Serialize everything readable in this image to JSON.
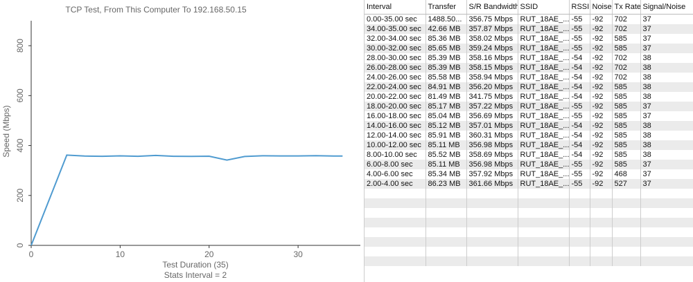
{
  "chart_data": {
    "type": "line",
    "title": "TCP Test,  From This Computer To 192.168.50.15",
    "x_label": "Test Duration (35)",
    "x_sublabel": "Stats Interval = 2",
    "y_label": "Speed (Mbps)",
    "x": [
      0,
      4,
      6,
      8,
      10,
      12,
      14,
      16,
      18,
      20,
      22,
      24,
      26,
      28,
      30,
      32,
      34,
      35
    ],
    "series": [
      {
        "color": "#4f9bd0",
        "values": [
          0,
          361.66,
          357.92,
          356.98,
          358.69,
          356.98,
          360.31,
          357.01,
          356.69,
          357.22,
          341.75,
          356.2,
          358.94,
          358.15,
          358.16,
          359.24,
          358.02,
          357.87
        ]
      }
    ],
    "xlim": [
      0,
      37
    ],
    "xticks": [
      0,
      10,
      20,
      30
    ],
    "ylim": [
      0,
      900
    ],
    "yticks": [
      0,
      200,
      400,
      600,
      800
    ]
  },
  "table": {
    "columns": [
      "Interval",
      "Transfer",
      "S/R Bandwidth",
      "SSID",
      "RSSI",
      "Noise",
      "Tx Rate",
      "Signal/Noise"
    ],
    "rows": [
      [
        "0.00-35.00 sec",
        "1488.50...",
        "356.75 Mbps",
        "RUT_18AE_...",
        "-55",
        "-92",
        "702",
        "37"
      ],
      [
        "34.00-35.00 sec",
        "42.66 MB",
        "357.87 Mbps",
        "RUT_18AE_...",
        "-55",
        "-92",
        "702",
        "37"
      ],
      [
        "32.00-34.00 sec",
        "85.36 MB",
        "358.02 Mbps",
        "RUT_18AE_...",
        "-55",
        "-92",
        "585",
        "37"
      ],
      [
        "30.00-32.00 sec",
        "85.65 MB",
        "359.24 Mbps",
        "RUT_18AE_...",
        "-55",
        "-92",
        "585",
        "37"
      ],
      [
        "28.00-30.00 sec",
        "85.39 MB",
        "358.16 Mbps",
        "RUT_18AE_...",
        "-54",
        "-92",
        "702",
        "38"
      ],
      [
        "26.00-28.00 sec",
        "85.39 MB",
        "358.15 Mbps",
        "RUT_18AE_...",
        "-54",
        "-92",
        "702",
        "38"
      ],
      [
        "24.00-26.00 sec",
        "85.58 MB",
        "358.94 Mbps",
        "RUT_18AE_...",
        "-54",
        "-92",
        "702",
        "38"
      ],
      [
        "22.00-24.00 sec",
        "84.91 MB",
        "356.20 Mbps",
        "RUT_18AE_...",
        "-54",
        "-92",
        "585",
        "38"
      ],
      [
        "20.00-22.00 sec",
        "81.49 MB",
        "341.75 Mbps",
        "RUT_18AE_...",
        "-54",
        "-92",
        "585",
        "38"
      ],
      [
        "18.00-20.00 sec",
        "85.17 MB",
        "357.22 Mbps",
        "RUT_18AE_...",
        "-55",
        "-92",
        "585",
        "37"
      ],
      [
        "16.00-18.00 sec",
        "85.04 MB",
        "356.69 Mbps",
        "RUT_18AE_...",
        "-55",
        "-92",
        "585",
        "37"
      ],
      [
        "14.00-16.00 sec",
        "85.12 MB",
        "357.01 Mbps",
        "RUT_18AE_...",
        "-54",
        "-92",
        "585",
        "38"
      ],
      [
        "12.00-14.00 sec",
        "85.91 MB",
        "360.31 Mbps",
        "RUT_18AE_...",
        "-54",
        "-92",
        "585",
        "38"
      ],
      [
        "10.00-12.00 sec",
        "85.11 MB",
        "356.98 Mbps",
        "RUT_18AE_...",
        "-54",
        "-92",
        "585",
        "38"
      ],
      [
        "8.00-10.00 sec",
        "85.52 MB",
        "358.69 Mbps",
        "RUT_18AE_...",
        "-54",
        "-92",
        "585",
        "38"
      ],
      [
        "6.00-8.00 sec",
        "85.11 MB",
        "356.98 Mbps",
        "RUT_18AE_...",
        "-55",
        "-92",
        "585",
        "37"
      ],
      [
        "4.00-6.00 sec",
        "85.34 MB",
        "357.92 Mbps",
        "RUT_18AE_...",
        "-55",
        "-92",
        "468",
        "37"
      ],
      [
        "2.00-4.00 sec",
        "86.23 MB",
        "361.66 Mbps",
        "RUT_18AE_...",
        "-55",
        "-92",
        "527",
        "37"
      ]
    ]
  }
}
